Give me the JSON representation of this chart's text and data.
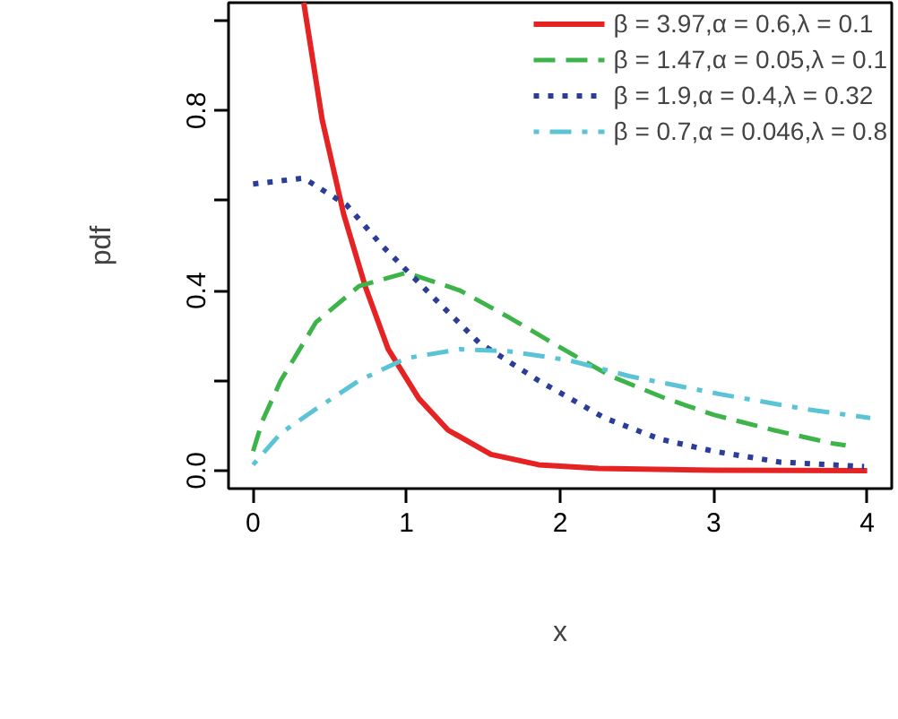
{
  "chart_data": {
    "type": "line",
    "xlabel": "x",
    "ylabel": "pdf",
    "xlim": [
      -0.16,
      4.16
    ],
    "ylim": [
      -0.04,
      1.04
    ],
    "xticks": [
      0,
      1,
      2,
      3,
      4
    ],
    "yticks": [
      {
        "value": 0,
        "label": "0.0"
      },
      {
        "value": 0.2,
        "label": null
      },
      {
        "value": 0.4,
        "label": "0.4"
      },
      {
        "value": 0.6,
        "label": null
      },
      {
        "value": 0.8,
        "label": "0.8"
      },
      {
        "value": 1.0,
        "label": null
      }
    ],
    "grid": false,
    "legend": "top right",
    "series": [
      {
        "name": "β = 3.97,α = 0.6,λ = 0.1",
        "color": "#e52323",
        "line_style": "solid",
        "x": [
          0.33,
          0.45,
          0.59,
          0.73,
          0.88,
          1.08,
          1.27,
          1.55,
          1.86,
          2.25,
          3.0,
          4.0
        ],
        "values": [
          1.04,
          0.78,
          0.57,
          0.41,
          0.27,
          0.16,
          0.09,
          0.036,
          0.013,
          0.005,
          0.001,
          0.0
        ]
      },
      {
        "name": "β = 1.47,α = 0.05,λ = 0.1",
        "color": "#3db44a",
        "line_style": "dashed",
        "x": [
          0,
          0.06,
          0.18,
          0.41,
          0.69,
          1.0,
          1.35,
          1.67,
          2.02,
          2.33,
          2.69,
          3.0,
          3.39,
          3.78,
          3.86
        ],
        "values": [
          0.043,
          0.11,
          0.2,
          0.33,
          0.41,
          0.44,
          0.4,
          0.34,
          0.27,
          0.21,
          0.16,
          0.124,
          0.09,
          0.06,
          0.056
        ]
      },
      {
        "name": "β = 1.9,α = 0.4,λ = 0.32",
        "color": "#2b3d99",
        "line_style": "dotted",
        "x": [
          0,
          0.33,
          0.61,
          0.84,
          1.16,
          1.47,
          1.86,
          2.29,
          2.65,
          3.0,
          3.43,
          3.98
        ],
        "values": [
          0.637,
          0.65,
          0.59,
          0.5,
          0.39,
          0.285,
          0.2,
          0.117,
          0.07,
          0.043,
          0.019,
          0.009
        ]
      },
      {
        "name": "β = 0.7,α = 0.046,λ = 0.8",
        "color": "#5bc3d6",
        "line_style": "dotdash",
        "x": [
          0,
          0.18,
          0.41,
          0.69,
          1.0,
          1.35,
          1.67,
          2.06,
          2.45,
          3.04,
          3.59,
          4.02
        ],
        "values": [
          0.013,
          0.083,
          0.137,
          0.2,
          0.25,
          0.27,
          0.265,
          0.245,
          0.21,
          0.17,
          0.137,
          0.117
        ]
      }
    ]
  }
}
